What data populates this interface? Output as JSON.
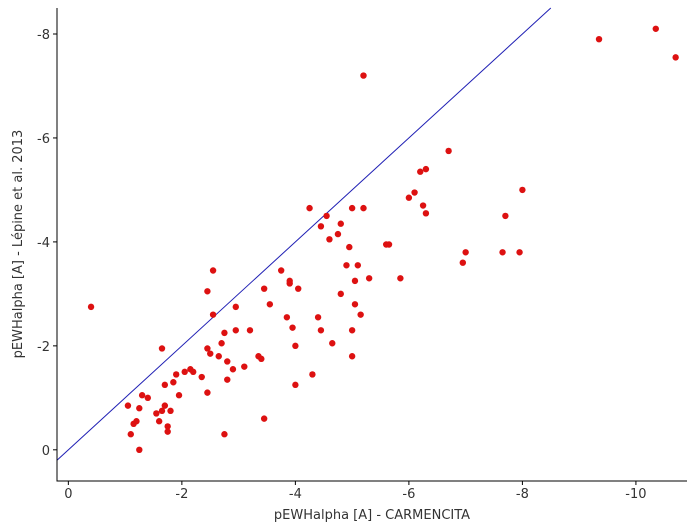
{
  "chart_data": {
    "type": "scatter",
    "xlabel": "pEWHalpha [A] - CARMENCITA",
    "ylabel": "pEWHalpha [A] - Lépine et al. 2013",
    "xlim": [
      0.2,
      -10.9
    ],
    "ylim": [
      0.6,
      -8.5
    ],
    "x_ticks": [
      0,
      -2,
      -4,
      -6,
      -8,
      -10
    ],
    "x_tick_labels": [
      "0",
      "-2",
      "-4",
      "-6",
      "-8",
      "-10"
    ],
    "y_ticks": [
      0,
      -2,
      -4,
      -6,
      -8
    ],
    "y_tick_labels": [
      "0",
      "-2",
      "-4",
      "-6",
      "-8"
    ],
    "grid": false,
    "reference_line": {
      "type": "y=x",
      "color": "#1f1fb4"
    },
    "colors": {
      "points": "#dd1111",
      "line": "#1f1fb4",
      "axis": "#000000",
      "text": "#333333"
    },
    "series": [
      {
        "points": [
          [
            -0.4,
            -2.75
          ],
          [
            -1.05,
            -0.85
          ],
          [
            -1.1,
            -0.3
          ],
          [
            -1.15,
            -0.5
          ],
          [
            -1.2,
            -0.55
          ],
          [
            -1.25,
            0.0
          ],
          [
            -1.25,
            -0.8
          ],
          [
            -1.3,
            -1.05
          ],
          [
            -1.4,
            -1.0
          ],
          [
            -1.55,
            -0.7
          ],
          [
            -1.6,
            -0.55
          ],
          [
            -1.65,
            -0.75
          ],
          [
            -1.65,
            -1.95
          ],
          [
            -1.7,
            -0.85
          ],
          [
            -1.7,
            -1.25
          ],
          [
            -1.75,
            -0.45
          ],
          [
            -1.75,
            -0.35
          ],
          [
            -1.8,
            -0.75
          ],
          [
            -1.85,
            -1.3
          ],
          [
            -1.9,
            -1.45
          ],
          [
            -1.95,
            -1.05
          ],
          [
            -2.05,
            -1.5
          ],
          [
            -2.15,
            -1.55
          ],
          [
            -2.2,
            -1.5
          ],
          [
            -2.35,
            -1.4
          ],
          [
            -2.45,
            -1.1
          ],
          [
            -2.45,
            -1.95
          ],
          [
            -2.5,
            -1.85
          ],
          [
            -2.45,
            -3.05
          ],
          [
            -2.55,
            -2.6
          ],
          [
            -2.55,
            -3.45
          ],
          [
            -2.65,
            -1.8
          ],
          [
            -2.7,
            -2.05
          ],
          [
            -2.75,
            -0.3
          ],
          [
            -2.75,
            -2.25
          ],
          [
            -2.8,
            -1.7
          ],
          [
            -2.8,
            -1.35
          ],
          [
            -2.9,
            -1.55
          ],
          [
            -2.95,
            -2.3
          ],
          [
            -2.95,
            -2.75
          ],
          [
            -3.1,
            -1.6
          ],
          [
            -3.2,
            -2.3
          ],
          [
            -3.35,
            -1.8
          ],
          [
            -3.4,
            -1.75
          ],
          [
            -3.45,
            -0.6
          ],
          [
            -3.45,
            -3.1
          ],
          [
            -3.55,
            -2.8
          ],
          [
            -3.75,
            -3.45
          ],
          [
            -3.85,
            -2.55
          ],
          [
            -3.9,
            -3.2
          ],
          [
            -3.9,
            -3.25
          ],
          [
            -3.95,
            -2.35
          ],
          [
            -4.0,
            -1.25
          ],
          [
            -4.0,
            -2.0
          ],
          [
            -4.05,
            -3.1
          ],
          [
            -4.25,
            -4.65
          ],
          [
            -4.3,
            -1.45
          ],
          [
            -4.4,
            -2.55
          ],
          [
            -4.45,
            -2.3
          ],
          [
            -4.45,
            -4.3
          ],
          [
            -4.55,
            -4.5
          ],
          [
            -4.6,
            -4.05
          ],
          [
            -4.65,
            -2.05
          ],
          [
            -4.75,
            -4.15
          ],
          [
            -4.8,
            -3.0
          ],
          [
            -4.8,
            -4.35
          ],
          [
            -4.9,
            -3.55
          ],
          [
            -4.95,
            -3.9
          ],
          [
            -5.0,
            -4.65
          ],
          [
            -5.0,
            -2.3
          ],
          [
            -5.0,
            -1.8
          ],
          [
            -5.05,
            -3.25
          ],
          [
            -5.05,
            -2.8
          ],
          [
            -5.1,
            -3.55
          ],
          [
            -5.15,
            -2.6
          ],
          [
            -5.2,
            -7.2
          ],
          [
            -5.2,
            -4.65
          ],
          [
            -5.3,
            -3.3
          ],
          [
            -5.6,
            -3.95
          ],
          [
            -5.65,
            -3.95
          ],
          [
            -5.85,
            -3.3
          ],
          [
            -6.0,
            -4.85
          ],
          [
            -6.1,
            -4.95
          ],
          [
            -6.2,
            -5.35
          ],
          [
            -6.25,
            -4.7
          ],
          [
            -6.3,
            -5.4
          ],
          [
            -6.3,
            -4.55
          ],
          [
            -6.7,
            -5.75
          ],
          [
            -6.95,
            -3.6
          ],
          [
            -7.0,
            -3.8
          ],
          [
            -7.65,
            -3.8
          ],
          [
            -7.7,
            -4.5
          ],
          [
            -7.95,
            -3.8
          ],
          [
            -8.0,
            -5.0
          ],
          [
            -9.35,
            -7.9
          ],
          [
            -10.35,
            -8.1
          ],
          [
            -10.7,
            -7.55
          ]
        ]
      }
    ]
  }
}
